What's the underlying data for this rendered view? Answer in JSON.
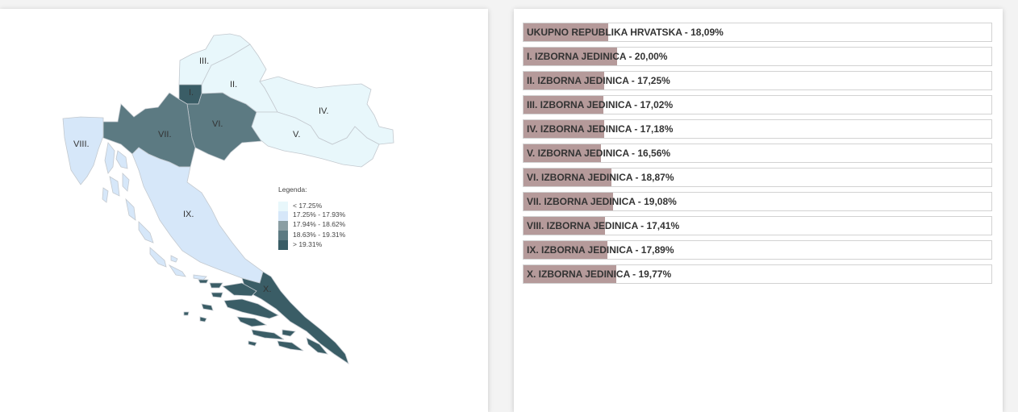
{
  "palette": {
    "c1": "#e8f7fb",
    "c2": "#d6e7f9",
    "c3": "#8a9ea3",
    "c4": "#5c7a82",
    "c5": "#3a5d66",
    "bar": "#b59a9a"
  },
  "map": {
    "regions": [
      {
        "id": "I",
        "label": "I.",
        "value": 20.0,
        "class": 5
      },
      {
        "id": "II",
        "label": "II.",
        "value": 17.25,
        "class": 1
      },
      {
        "id": "III",
        "label": "III.",
        "value": 17.02,
        "class": 1
      },
      {
        "id": "IV",
        "label": "IV.",
        "value": 17.18,
        "class": 1
      },
      {
        "id": "V",
        "label": "V.",
        "value": 16.56,
        "class": 1
      },
      {
        "id": "VI",
        "label": "VI.",
        "value": 18.87,
        "class": 4
      },
      {
        "id": "VII",
        "label": "VII.",
        "value": 19.08,
        "class": 4
      },
      {
        "id": "VIII",
        "label": "VIII.",
        "value": 17.41,
        "class": 2
      },
      {
        "id": "IX",
        "label": "IX.",
        "value": 17.89,
        "class": 2
      },
      {
        "id": "X",
        "label": "X.",
        "value": 19.77,
        "class": 5
      }
    ],
    "legend": {
      "title": "Legenda:",
      "items": [
        {
          "label": "< 17.25%",
          "color": "#e8f7fb"
        },
        {
          "label": "17.25% - 17.93%",
          "color": "#d6e7f9"
        },
        {
          "label": "17.94% - 18.62%",
          "color": "#8a9ea3"
        },
        {
          "label": "18.63% - 19.31%",
          "color": "#5c7a82"
        },
        {
          "label": "> 19.31%",
          "color": "#3a5d66"
        }
      ]
    }
  },
  "bars": {
    "scale_max": 100,
    "rows": [
      {
        "label": "UKUPNO REPUBLIKA HRVATSKA - 18,09%",
        "value": 18.09
      },
      {
        "label": "I. IZBORNA JEDINICA - 20,00%",
        "value": 20.0
      },
      {
        "label": "II. IZBORNA JEDINICA - 17,25%",
        "value": 17.25
      },
      {
        "label": "III. IZBORNA JEDINICA - 17,02%",
        "value": 17.02
      },
      {
        "label": "IV. IZBORNA JEDINICA - 17,18%",
        "value": 17.18
      },
      {
        "label": "V. IZBORNA JEDINICA - 16,56%",
        "value": 16.56
      },
      {
        "label": "VI. IZBORNA JEDINICA - 18,87%",
        "value": 18.87
      },
      {
        "label": "VII. IZBORNA JEDINICA - 19,08%",
        "value": 19.08
      },
      {
        "label": "VIII. IZBORNA JEDINICA - 17,41%",
        "value": 17.41
      },
      {
        "label": "IX. IZBORNA JEDINICA - 17,89%",
        "value": 17.89
      },
      {
        "label": "X. IZBORNA JEDINICA - 19,77%",
        "value": 19.77
      }
    ]
  }
}
